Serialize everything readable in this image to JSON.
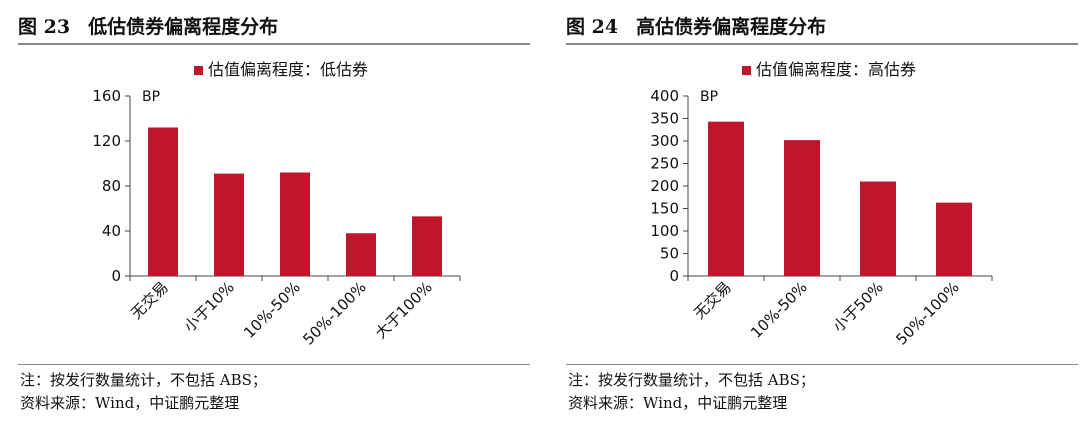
{
  "charts": [
    {
      "figure_number": "图 23",
      "figure_title": "低估债券偏离程度分布",
      "note": "注：按发行数量统计，不包括 ABS；",
      "source": "资料来源：Wind，中证鹏元整理"
    },
    {
      "figure_number": "图 24",
      "figure_title": "高估债券偏离程度分布",
      "note": "注：按发行数量统计，不包括 ABS；",
      "source": "资料来源：Wind，中证鹏元整理"
    }
  ],
  "colors": {
    "bar": "#c0152a",
    "axis": "#444444"
  },
  "chart_data": [
    {
      "type": "bar",
      "categories": [
        "无交易",
        "小于10%",
        "10%-50%",
        "50%-100%",
        "大于100%"
      ],
      "series": [
        {
          "name": "估值偏离程度：低估券",
          "values": [
            132,
            91,
            92,
            38,
            53
          ]
        }
      ],
      "ylabel": "BP",
      "ylim": [
        0,
        160
      ],
      "yticks": [
        0,
        40,
        80,
        120,
        160
      ],
      "legend": "top",
      "grid": false
    },
    {
      "type": "bar",
      "categories": [
        "无交易",
        "10%-50%",
        "小于50%",
        "50%-100%"
      ],
      "series": [
        {
          "name": "估值偏离程度：高估券",
          "values": [
            343,
            302,
            210,
            163
          ]
        }
      ],
      "ylabel": "BP",
      "ylim": [
        0,
        400
      ],
      "yticks": [
        0,
        50,
        100,
        150,
        200,
        250,
        300,
        350,
        400
      ],
      "legend": "top",
      "grid": false
    }
  ]
}
